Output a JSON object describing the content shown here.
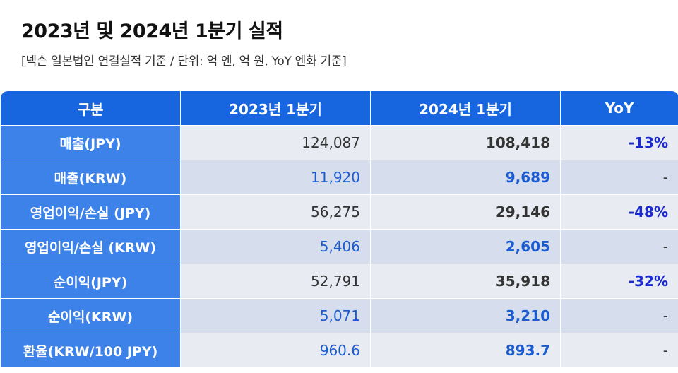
{
  "header": {
    "title": "2023년 및 2024년 1분기 실적",
    "subtitle": "[넥슨 일본법인 연결실적 기준 / 단위: 억 엔, 억 원, YoY 엔화 기준]"
  },
  "table": {
    "columns": [
      "구분",
      "2023년 1분기",
      "2024년 1분기",
      "YoY"
    ],
    "rows": [
      [
        "매출(JPY)",
        "124,087",
        "108,418",
        "-13%"
      ],
      [
        "매출(KRW)",
        "11,920",
        "9,689",
        "-"
      ],
      [
        "영업이익/손실 (JPY)",
        "56,275",
        "29,146",
        "-48%"
      ],
      [
        "영업이익/손실 (KRW)",
        "5,406",
        "2,605",
        "-"
      ],
      [
        "순이익(JPY)",
        "52,791",
        "35,918",
        "-32%"
      ],
      [
        "순이익(KRW)",
        "5,071",
        "3,210",
        "-"
      ],
      [
        "환율(KRW/100 JPY)",
        "960.6",
        "893.7",
        "-"
      ]
    ]
  }
}
